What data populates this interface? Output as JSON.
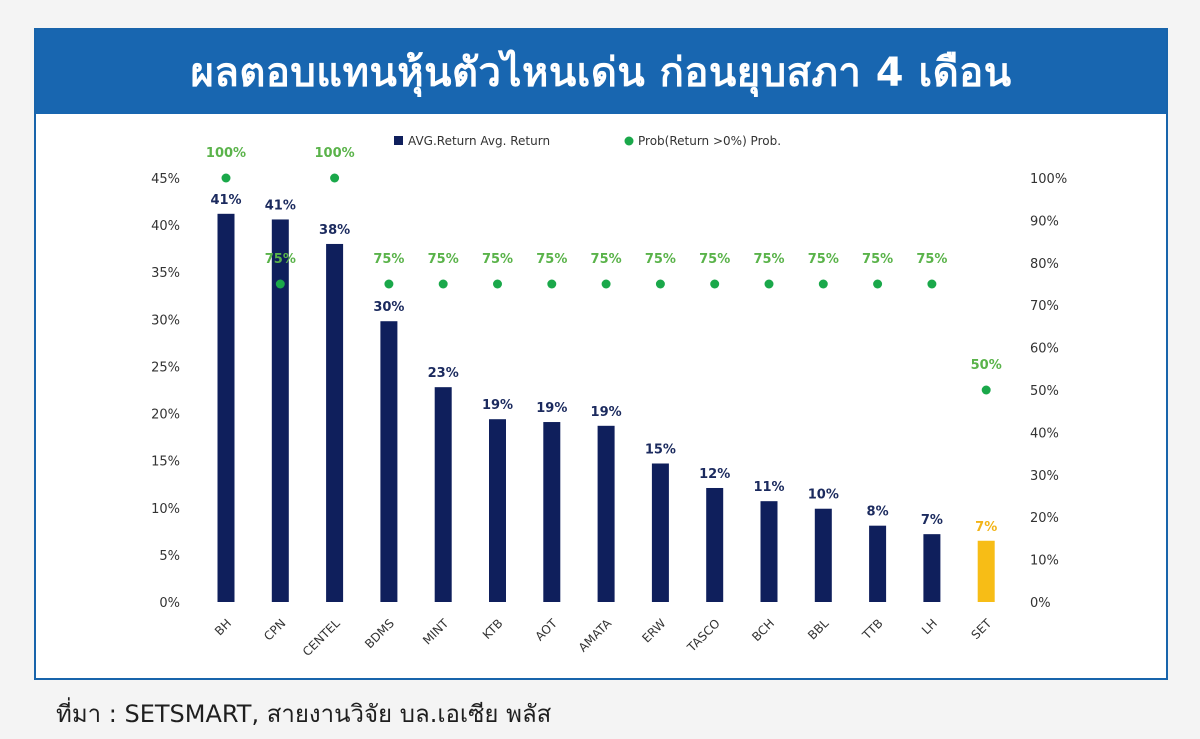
{
  "header": {
    "title": "ผลตอบแทนหุ้นตัวไหนเด่น ก่อนยุบสภา 4 เดือน"
  },
  "source": "ที่มา : SETSMART, สายงานวิจัย บล.เอเซีย พลัส",
  "colors": {
    "header_bg": "#1866b0",
    "bar": "#0f1f5c",
    "bar_highlight": "#f7bd16",
    "prob": "#1aa84a",
    "prob_label": "#5ab34a",
    "bar_label": "#1b2a5e",
    "highlight_label": "#f2b418",
    "axis_text": "#333333"
  },
  "chart_data": {
    "type": "bar",
    "categories": [
      "BH",
      "CPN",
      "CENTEL",
      "BDMS",
      "MINT",
      "KTB",
      "AOT",
      "AMATA",
      "ERW",
      "TASCO",
      "BCH",
      "BBL",
      "TTB",
      "LH",
      "SET"
    ],
    "series": [
      {
        "name": "AVG.Return Avg. Return",
        "type": "bar",
        "axis": "left",
        "values": [
          41.2,
          40.6,
          38.0,
          29.8,
          22.8,
          19.4,
          19.1,
          18.7,
          14.7,
          12.1,
          10.7,
          9.9,
          8.1,
          7.2,
          6.5
        ],
        "labels": [
          "41%",
          "41%",
          "38%",
          "30%",
          "23%",
          "19%",
          "19%",
          "19%",
          "15%",
          "12%",
          "11%",
          "10%",
          "8%",
          "7%",
          "7%"
        ],
        "highlight_index": 14
      },
      {
        "name": "Prob(Return >0%) Prob.",
        "type": "scatter",
        "axis": "right",
        "values": [
          100,
          75,
          100,
          75,
          75,
          75,
          75,
          75,
          75,
          75,
          75,
          75,
          75,
          75,
          50
        ],
        "labels": [
          "100%",
          "75%",
          "100%",
          "75%",
          "75%",
          "75%",
          "75%",
          "75%",
          "75%",
          "75%",
          "75%",
          "75%",
          "75%",
          "75%",
          "50%"
        ]
      }
    ],
    "left_axis": {
      "min": 0,
      "max": 45,
      "ticks": [
        "0%",
        "5%",
        "10%",
        "15%",
        "20%",
        "25%",
        "30%",
        "35%",
        "40%",
        "45%"
      ]
    },
    "right_axis": {
      "min": 0,
      "max": 100,
      "ticks": [
        "0%",
        "10%",
        "20%",
        "30%",
        "40%",
        "50%",
        "60%",
        "70%",
        "80%",
        "90%",
        "100%"
      ]
    },
    "legend_position": "top-center",
    "grid": false
  }
}
